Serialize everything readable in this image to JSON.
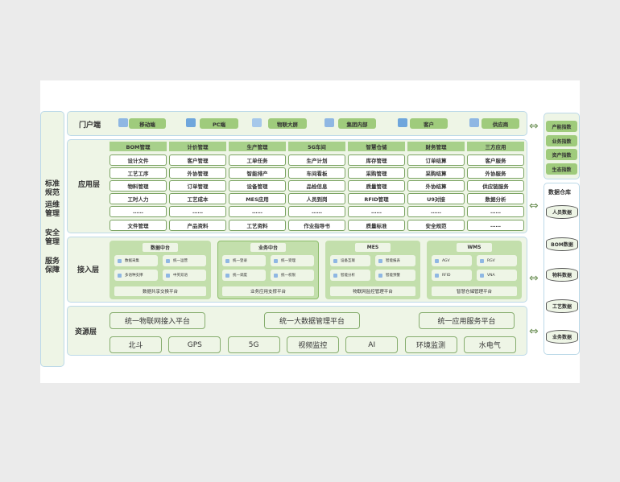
{
  "left_column": [
    "标准规范",
    "运维管理",
    "安全管理",
    "服务保障"
  ],
  "portal": {
    "title": "门户端",
    "items": [
      {
        "label": "移动端",
        "icon": "tablet-icon"
      },
      {
        "label": "PC端",
        "icon": "monitor-icon"
      },
      {
        "label": "物联大屏",
        "icon": "screen-icon"
      },
      {
        "label": "集团内部",
        "icon": "building-icon"
      },
      {
        "label": "客户",
        "icon": "customer-icon"
      },
      {
        "label": "供应商",
        "icon": "supplier-icon"
      }
    ]
  },
  "app": {
    "title": "应用层",
    "columns": [
      {
        "header": "BOM管理",
        "items": [
          "设计文件",
          "工艺工序",
          "物料管理",
          "工时人力",
          "……",
          "文件管理"
        ]
      },
      {
        "header": "计价管理",
        "items": [
          "客户管理",
          "外协管理",
          "订单管理",
          "工艺成本",
          "……",
          "产品资料"
        ]
      },
      {
        "header": "生产管理",
        "items": [
          "工单任务",
          "智能排产",
          "设备管理",
          "MES应用",
          "……",
          "工艺资料"
        ]
      },
      {
        "header": "5G车间",
        "items": [
          "生产计划",
          "车间看板",
          "品检信息",
          "人员到岗",
          "……",
          "作业指导书"
        ]
      },
      {
        "header": "智慧仓储",
        "items": [
          "库存管理",
          "采购管理",
          "质量管理",
          "RFID管理",
          "……",
          "质量标准"
        ]
      },
      {
        "header": "财务管理",
        "items": [
          "订单结算",
          "采购结算",
          "外协结算",
          "U9对接",
          "……",
          "安全规范"
        ]
      },
      {
        "header": "三方应用",
        "items": [
          "客户服务",
          "外协服务",
          "供应链服务",
          "数据分析",
          "……",
          "……"
        ]
      }
    ]
  },
  "access": {
    "title": "接入层",
    "cards": [
      {
        "title": "数据中台",
        "chips": [
          "数据采集",
          "统一运营",
          "多语种支撑",
          "中英双语"
        ],
        "footer": "数据共享交换平台"
      },
      {
        "title": "业务中台",
        "chips": [
          "统一登录",
          "统一受理",
          "统一调度",
          "统一权限"
        ],
        "footer": "业务应用支撑平台"
      },
      {
        "title": "MES",
        "chips": [
          "设备互联",
          "智能报表",
          "智能分析",
          "智能预警"
        ],
        "footer": "物联网监控管理平台"
      },
      {
        "title": "WMS",
        "chips": [
          "AGV",
          "RGV",
          "RFID",
          "VNA"
        ],
        "footer": "智慧仓储管理平台"
      }
    ]
  },
  "resource": {
    "title": "资源层",
    "platforms": [
      "统一物联网接入平台",
      "统一大数据管理平台",
      "统一应用服务平台"
    ],
    "items": [
      "北斗",
      "GPS",
      "5G",
      "视频监控",
      "AI",
      "环境监测",
      "水电气"
    ]
  },
  "indices": [
    "产能指数",
    "业务指数",
    "资产指数",
    "生态指数"
  ],
  "warehouse": {
    "title": "数据仓库",
    "items": [
      "人员数据",
      "BOM数据",
      "物料数据",
      "工艺数据",
      "业务数据"
    ]
  },
  "colors": {
    "panel": "#eef5e6",
    "green": "#9fcb7c",
    "border": "#bcd9e8"
  }
}
